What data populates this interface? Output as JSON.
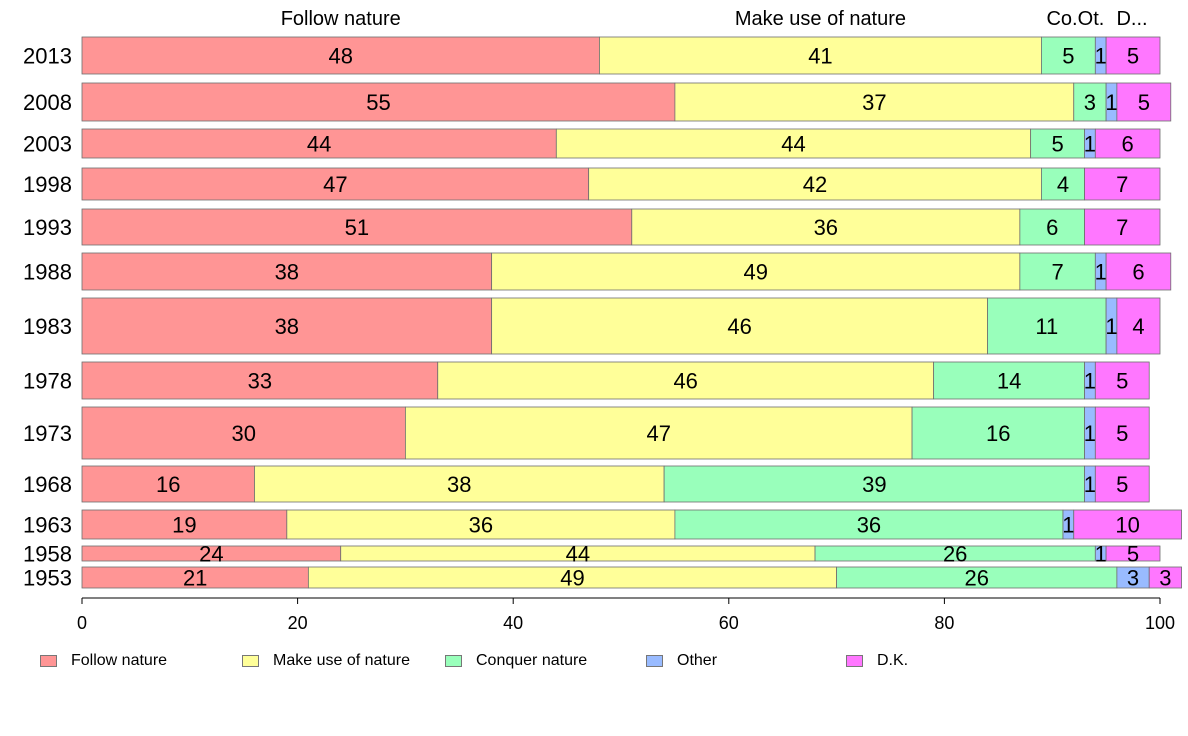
{
  "chart_data": {
    "type": "bar",
    "orientation": "horizontal",
    "stacked": true,
    "title": "",
    "xlabel": "",
    "ylabel": "",
    "xlim": [
      0,
      100
    ],
    "x_ticks": [
      "0",
      "20",
      "40",
      "60",
      "80",
      "100"
    ],
    "grid": false,
    "legend_position": "bottom",
    "top_labels": [
      "Follow nature",
      "Make use of nature",
      "Co.",
      "Ot.",
      "D..."
    ],
    "categories": [
      "2013",
      "2008",
      "2003",
      "1998",
      "1993",
      "1988",
      "1983",
      "1978",
      "1973",
      "1968",
      "1963",
      "1958",
      "1953"
    ],
    "series": [
      {
        "name": "Follow nature",
        "color": "#ff9595",
        "values": [
          48,
          55,
          44,
          47,
          51,
          38,
          38,
          33,
          30,
          16,
          19,
          24,
          21
        ]
      },
      {
        "name": "Make use of nature",
        "color": "#ffff99",
        "values": [
          41,
          37,
          44,
          42,
          36,
          49,
          46,
          46,
          47,
          38,
          36,
          44,
          49
        ]
      },
      {
        "name": "Conquer nature",
        "color": "#99ffbb",
        "values": [
          5,
          3,
          5,
          4,
          6,
          7,
          11,
          14,
          16,
          39,
          36,
          26,
          26
        ]
      },
      {
        "name": "Other",
        "color": "#99bbff",
        "values": [
          1,
          1,
          1,
          0,
          0,
          1,
          1,
          1,
          1,
          1,
          1,
          1,
          3
        ]
      },
      {
        "name": "D.K.",
        "color": "#ff77ff",
        "values": [
          5,
          5,
          6,
          7,
          7,
          6,
          4,
          5,
          5,
          5,
          10,
          5,
          3
        ]
      }
    ],
    "data_labels": [
      [
        "48",
        "41",
        "5",
        "1",
        "5"
      ],
      [
        "55",
        "37",
        "3",
        "1",
        "5"
      ],
      [
        "44",
        "44",
        "5",
        "1",
        "6"
      ],
      [
        "47",
        "42",
        "4",
        "",
        "7"
      ],
      [
        "51",
        "36",
        "6",
        "",
        "7"
      ],
      [
        "38",
        "49",
        "7",
        "1",
        "6"
      ],
      [
        "38",
        "46",
        "11",
        "1",
        "4"
      ],
      [
        "33",
        "46",
        "14",
        "1",
        "5"
      ],
      [
        "30",
        "47",
        "16",
        "1",
        "5"
      ],
      [
        "16",
        "38",
        "39",
        "1",
        "5"
      ],
      [
        "19",
        "36",
        "36",
        "1",
        "10"
      ],
      [
        "24",
        "44",
        "26",
        "1",
        "5"
      ],
      [
        "21",
        "49",
        "26",
        "3",
        "3"
      ]
    ]
  }
}
